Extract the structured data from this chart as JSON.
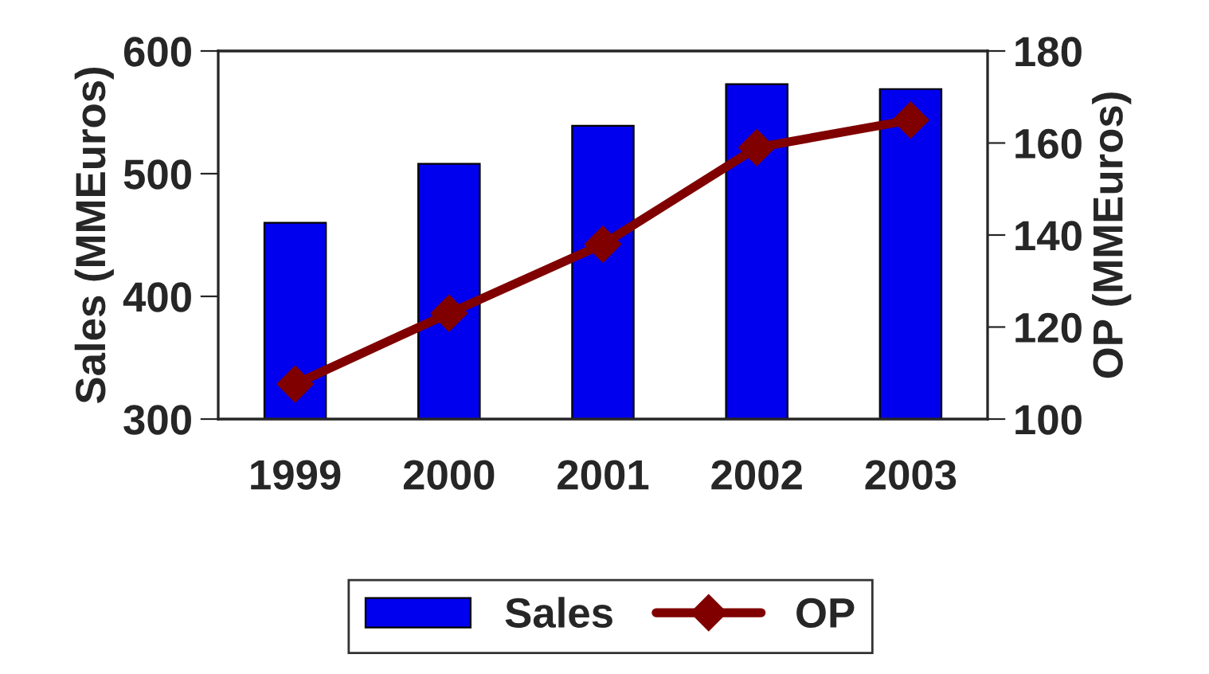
{
  "chart_data": {
    "type": "bar",
    "categories": [
      "1999",
      "2000",
      "2001",
      "2002",
      "2003"
    ],
    "ylabel": "Sales (MMEuros)",
    "y2label": "OP (MMEuros)",
    "series": [
      {
        "name": "Sales",
        "color": "#0000ee",
        "values": [
          460,
          508,
          539,
          573,
          569
        ]
      },
      {
        "name": "OP",
        "type": "line",
        "axis": "y2",
        "color": "#800000",
        "marker": "diamond",
        "line_style": "solid",
        "values": [
          107.6,
          123,
          138,
          159,
          165
        ]
      }
    ],
    "ylim": [
      300,
      600
    ],
    "yticks": [
      300,
      400,
      500,
      600
    ],
    "y2lim": [
      100,
      180
    ],
    "y2ticks": [
      100,
      120,
      140,
      160,
      180
    ],
    "grid": false,
    "legend": "bottom"
  }
}
